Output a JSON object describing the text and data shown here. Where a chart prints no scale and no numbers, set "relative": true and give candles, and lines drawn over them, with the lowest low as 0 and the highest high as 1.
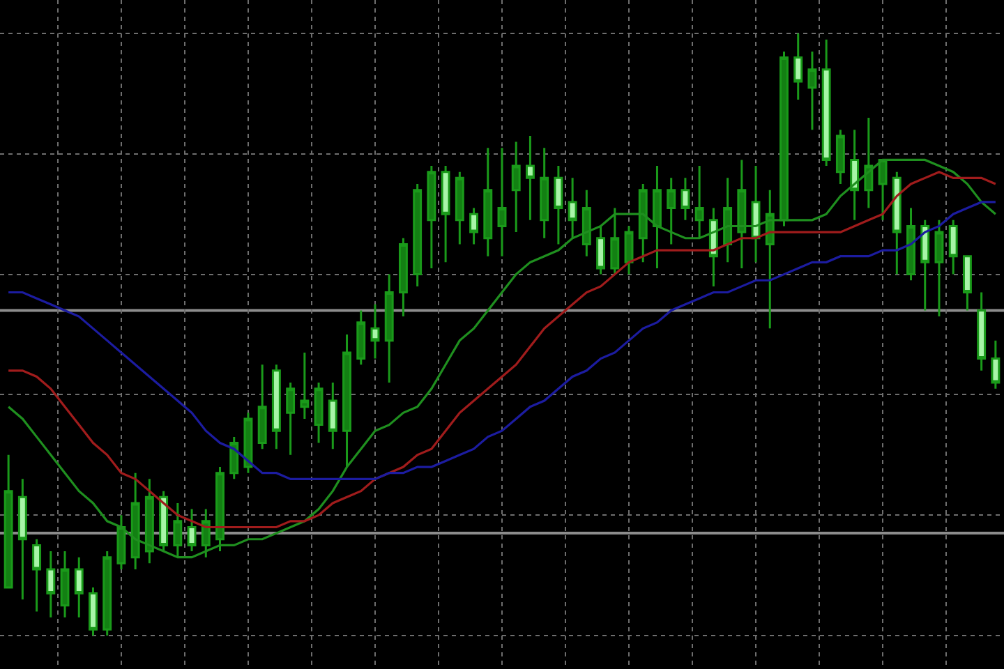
{
  "chart_data": {
    "type": "candlestick",
    "relative": true,
    "grid": true,
    "categories": [
      null,
      null,
      null,
      null,
      null,
      null,
      null,
      null,
      null,
      null,
      null,
      null,
      null,
      null,
      null,
      null,
      null,
      null,
      null,
      null,
      null,
      null,
      null,
      null,
      null,
      null,
      null,
      null,
      null,
      null,
      null,
      null,
      null,
      null,
      null,
      null,
      null,
      null,
      null,
      null,
      null,
      null,
      null,
      null,
      null,
      null,
      null,
      null,
      null,
      null,
      null,
      null,
      null,
      null,
      null,
      null,
      null,
      null,
      null,
      null,
      null,
      null,
      null,
      null,
      null,
      null,
      null,
      null,
      null,
      null,
      null
    ],
    "ohlc": [
      [
        0.08,
        0.3,
        0.08,
        0.24
      ],
      [
        0.23,
        0.26,
        0.06,
        0.16
      ],
      [
        0.15,
        0.16,
        0.04,
        0.11
      ],
      [
        0.11,
        0.14,
        0.03,
        0.07
      ],
      [
        0.05,
        0.14,
        0.03,
        0.11
      ],
      [
        0.11,
        0.13,
        0.03,
        0.07
      ],
      [
        0.07,
        0.08,
        0,
        0.01
      ],
      [
        0.01,
        0.14,
        0,
        0.13
      ],
      [
        0.12,
        0.2,
        0.11,
        0.18
      ],
      [
        0.13,
        0.27,
        0.11,
        0.22
      ],
      [
        0.14,
        0.26,
        0.12,
        0.23
      ],
      [
        0.23,
        0.24,
        0.14,
        0.15
      ],
      [
        0.15,
        0.22,
        0.13,
        0.19
      ],
      [
        0.18,
        0.21,
        0.14,
        0.15
      ],
      [
        0.15,
        0.21,
        0.13,
        0.19
      ],
      [
        0.16,
        0.28,
        0.14,
        0.27
      ],
      [
        0.27,
        0.33,
        0.26,
        0.32
      ],
      [
        0.28,
        0.37,
        0.27,
        0.36
      ],
      [
        0.32,
        0.45,
        0.31,
        0.38
      ],
      [
        0.44,
        0.45,
        0.31,
        0.34
      ],
      [
        0.37,
        0.42,
        0.3,
        0.41
      ],
      [
        0.38,
        0.47,
        0.36,
        0.39
      ],
      [
        0.35,
        0.42,
        0.32,
        0.41
      ],
      [
        0.39,
        0.42,
        0.31,
        0.34
      ],
      [
        0.34,
        0.5,
        0.28,
        0.47
      ],
      [
        0.46,
        0.54,
        0.45,
        0.52
      ],
      [
        0.51,
        0.55,
        0.46,
        0.49
      ],
      [
        0.49,
        0.6,
        0.42,
        0.57
      ],
      [
        0.57,
        0.66,
        0.53,
        0.65
      ],
      [
        0.6,
        0.75,
        0.58,
        0.74
      ],
      [
        0.69,
        0.78,
        0.61,
        0.77
      ],
      [
        0.77,
        0.78,
        0.62,
        0.7
      ],
      [
        0.69,
        0.77,
        0.65,
        0.76
      ],
      [
        0.7,
        0.71,
        0.65,
        0.67
      ],
      [
        0.66,
        0.81,
        0.63,
        0.74
      ],
      [
        0.68,
        0.81,
        0.63,
        0.71
      ],
      [
        0.74,
        0.82,
        0.67,
        0.78
      ],
      [
        0.78,
        0.83,
        0.69,
        0.76
      ],
      [
        0.69,
        0.81,
        0.66,
        0.76
      ],
      [
        0.76,
        0.78,
        0.65,
        0.71
      ],
      [
        0.72,
        0.76,
        0.66,
        0.69
      ],
      [
        0.65,
        0.74,
        0.63,
        0.71
      ],
      [
        0.66,
        0.68,
        0.6,
        0.61
      ],
      [
        0.61,
        0.71,
        0.6,
        0.66
      ],
      [
        0.62,
        0.68,
        0.6,
        0.67
      ],
      [
        0.66,
        0.75,
        0.62,
        0.74
      ],
      [
        0.68,
        0.78,
        0.61,
        0.74
      ],
      [
        0.71,
        0.76,
        0.65,
        0.74
      ],
      [
        0.74,
        0.76,
        0.69,
        0.71
      ],
      [
        0.69,
        0.78,
        0.66,
        0.71
      ],
      [
        0.69,
        0.71,
        0.58,
        0.63
      ],
      [
        0.65,
        0.76,
        0.62,
        0.71
      ],
      [
        0.67,
        0.79,
        0.61,
        0.74
      ],
      [
        0.72,
        0.78,
        0.62,
        0.66
      ],
      [
        0.65,
        0.74,
        0.51,
        0.7
      ],
      [
        0.69,
        0.97,
        0.68,
        0.96
      ],
      [
        0.96,
        1.0,
        0.89,
        0.92
      ],
      [
        0.91,
        0.97,
        0.84,
        0.94
      ],
      [
        0.94,
        0.99,
        0.78,
        0.79
      ],
      [
        0.77,
        0.84,
        0.75,
        0.83
      ],
      [
        0.79,
        0.84,
        0.69,
        0.74
      ],
      [
        0.74,
        0.86,
        0.71,
        0.78
      ],
      [
        0.75,
        0.79,
        0.69,
        0.79
      ],
      [
        0.76,
        0.77,
        0.6,
        0.67
      ],
      [
        0.6,
        0.71,
        0.59,
        0.68
      ],
      [
        0.68,
        0.69,
        0.54,
        0.62
      ],
      [
        0.62,
        0.69,
        0.53,
        0.67
      ],
      [
        0.68,
        0.69,
        0.6,
        0.63
      ],
      [
        0.63,
        0.63,
        0.54,
        0.57
      ],
      [
        0.54,
        0.57,
        0.44,
        0.46
      ],
      [
        0.46,
        0.49,
        0.41,
        0.42
      ]
    ],
    "series": [
      {
        "type": "line",
        "color": "#1f8f1f",
        "values": [
          0.38,
          0.36,
          0.33,
          0.3,
          0.27,
          0.24,
          0.22,
          0.19,
          0.18,
          0.16,
          0.15,
          0.14,
          0.13,
          0.13,
          0.14,
          0.15,
          0.15,
          0.16,
          0.16,
          0.17,
          0.18,
          0.19,
          0.21,
          0.24,
          0.28,
          0.31,
          0.34,
          0.35,
          0.37,
          0.38,
          0.41,
          0.45,
          0.49,
          0.51,
          0.54,
          0.57,
          0.6,
          0.62,
          0.63,
          0.64,
          0.66,
          0.67,
          0.68,
          0.7,
          0.7,
          0.7,
          0.68,
          0.67,
          0.66,
          0.66,
          0.67,
          0.68,
          0.68,
          0.68,
          0.69,
          0.69,
          0.69,
          0.69,
          0.7,
          0.73,
          0.75,
          0.77,
          0.79,
          0.79,
          0.79,
          0.79,
          0.78,
          0.77,
          0.75,
          0.72,
          0.7
        ]
      },
      {
        "type": "line",
        "color": "#a01c1c",
        "values": [
          0.44,
          0.44,
          0.43,
          0.41,
          0.38,
          0.35,
          0.32,
          0.3,
          0.27,
          0.26,
          0.24,
          0.22,
          0.2,
          0.19,
          0.18,
          0.18,
          0.18,
          0.18,
          0.18,
          0.18,
          0.19,
          0.19,
          0.2,
          0.22,
          0.23,
          0.24,
          0.26,
          0.27,
          0.28,
          0.3,
          0.31,
          0.34,
          0.37,
          0.39,
          0.41,
          0.43,
          0.45,
          0.48,
          0.51,
          0.53,
          0.55,
          0.57,
          0.58,
          0.6,
          0.62,
          0.63,
          0.64,
          0.64,
          0.64,
          0.64,
          0.64,
          0.65,
          0.66,
          0.66,
          0.67,
          0.67,
          0.67,
          0.67,
          0.67,
          0.67,
          0.68,
          0.69,
          0.7,
          0.73,
          0.75,
          0.76,
          0.77,
          0.76,
          0.76,
          0.76,
          0.75
        ]
      },
      {
        "type": "line",
        "color": "#1c1ca0",
        "values": [
          0.57,
          0.57,
          0.56,
          0.55,
          0.54,
          0.53,
          0.51,
          0.49,
          0.47,
          0.45,
          0.43,
          0.41,
          0.39,
          0.37,
          0.34,
          0.32,
          0.31,
          0.29,
          0.27,
          0.27,
          0.26,
          0.26,
          0.26,
          0.26,
          0.26,
          0.26,
          0.26,
          0.27,
          0.27,
          0.28,
          0.28,
          0.29,
          0.3,
          0.31,
          0.33,
          0.34,
          0.36,
          0.38,
          0.39,
          0.41,
          0.43,
          0.44,
          0.46,
          0.47,
          0.49,
          0.51,
          0.52,
          0.54,
          0.55,
          0.56,
          0.57,
          0.57,
          0.58,
          0.59,
          0.59,
          0.6,
          0.61,
          0.62,
          0.62,
          0.63,
          0.63,
          0.63,
          0.64,
          0.64,
          0.65,
          0.67,
          0.68,
          0.7,
          0.71,
          0.72,
          0.72
        ]
      }
    ],
    "ref_lines": [
      {
        "axis": "y",
        "value": 0.54,
        "color": "#8c8c8c"
      },
      {
        "axis": "y",
        "value": 0.17,
        "color": "#8c8c8c"
      }
    ]
  }
}
